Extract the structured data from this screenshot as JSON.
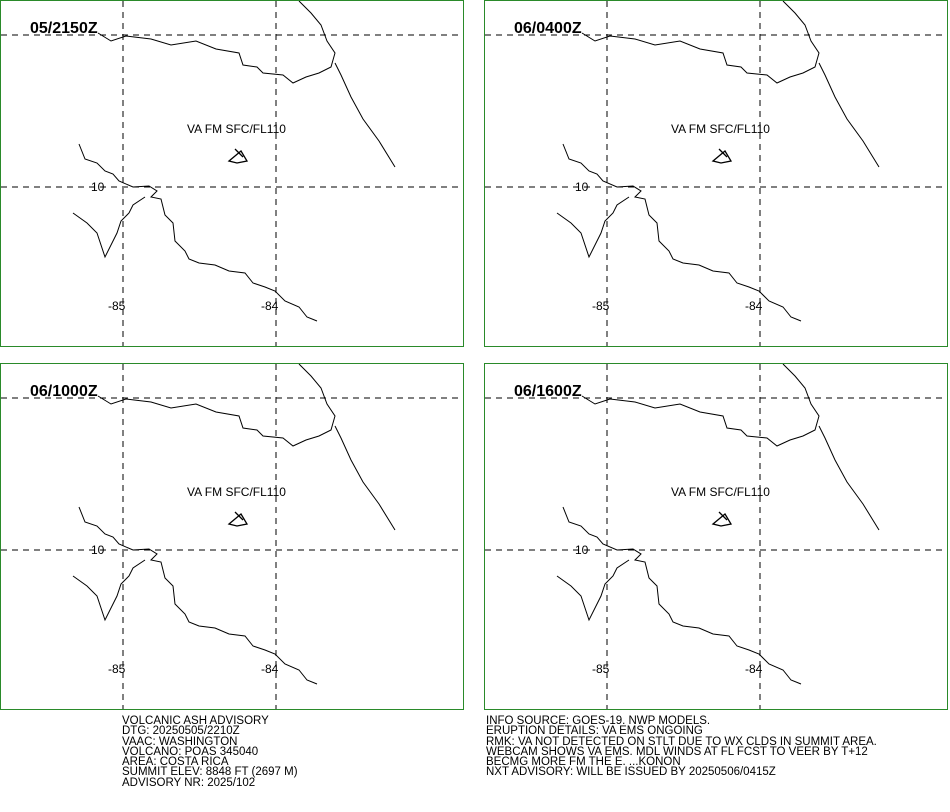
{
  "panels": [
    {
      "time": "05/2150Z",
      "layer": "VA FM SFC/FL110",
      "lon_labels": [
        "-85",
        "-84"
      ],
      "lat_label": "10"
    },
    {
      "time": "06/0400Z",
      "layer": "VA FM SFC/FL110",
      "lon_labels": [
        "-85",
        "-84"
      ],
      "lat_label": "10"
    },
    {
      "time": "06/1000Z",
      "layer": "VA FM SFC/FL110",
      "lon_labels": [
        "-85",
        "-84"
      ],
      "lat_label": "10"
    },
    {
      "time": "06/1600Z",
      "layer": "VA FM SFC/FL110",
      "lon_labels": [
        "-85",
        "-84"
      ],
      "lat_label": "10"
    }
  ],
  "advisory_left": [
    "VOLCANIC ASH ADVISORY",
    "DTG: 20250505/2210Z",
    "VAAC: WASHINGTON",
    "VOLCANO: POAS 345040",
    "AREA: COSTA RICA",
    "SUMMIT ELEV: 8848 FT (2697 M)",
    "ADVISORY NR: 2025/102"
  ],
  "advisory_right": [
    "INFO SOURCE: GOES-19. NWP MODELS.",
    "ERUPTION DETAILS: VA EMS ONGOING",
    "RMK: VA NOT DETECTED ON STLT DUE TO WX CLDS IN SUMMIT AREA.",
    "WEBCAM SHOWS VA EMS. MDL WINDS AT FL FCST TO VEER BY T+12",
    "BECMG MORE FM THE E. ...KONON",
    "NXT ADVISORY: WILL BE ISSUED BY 20250506/0415Z"
  ]
}
